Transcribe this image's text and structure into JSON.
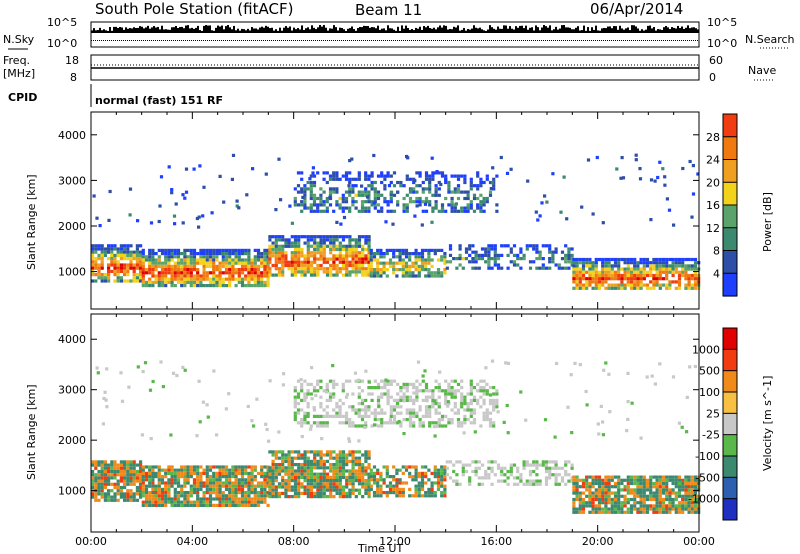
{
  "header": {
    "station": "South Pole Station (fitACF)",
    "beam": "Beam 11",
    "date": "06/Apr/2014"
  },
  "summary_panel": {
    "nsky_label": "N.Sky",
    "nsearch_label": "N.Search",
    "freq_label_1": "Freq.",
    "freq_label_2": "[MHz]",
    "nave_label": "Nave",
    "cpid_label": "CPID",
    "cpid_value": "normal (fast) 151 RF",
    "noise_ticks_left": [
      "10^5",
      "10^0"
    ],
    "noise_ticks_right": [
      "10^5",
      "10^0"
    ],
    "freq_ticks": [
      "18",
      "8"
    ],
    "nave_ticks": [
      "60",
      "0"
    ]
  },
  "colors": {
    "frame": "#000000",
    "power_scale": [
      "#1f3fff",
      "#2e4fa8",
      "#3b8a6f",
      "#5aa36a",
      "#f2d21b",
      "#f0a020",
      "#f07a10",
      "#f03c10",
      "#e00000"
    ],
    "velocity_scale": [
      "#e00000",
      "#f03c10",
      "#f08a1a",
      "#f7c043",
      "#c8c8c8",
      "#5ab84a",
      "#3b8a6f",
      "#2c5fb0",
      "#1f2fbf"
    ]
  },
  "chart_data": [
    {
      "type": "heatmap",
      "name": "power",
      "xlabel": "Time UT",
      "ylabel": "Slant Range [km]",
      "x_ticks": [
        "00:00",
        "04:00",
        "08:00",
        "12:00",
        "16:00",
        "20:00",
        "00:00"
      ],
      "y_ticks": [
        "1000",
        "2000",
        "3000",
        "4000"
      ],
      "ylim": [
        180,
        4500
      ],
      "xlim_hours": [
        0,
        24
      ],
      "colorbar_label": "Power [dB]",
      "colorbar_ticks": [
        "4",
        "8",
        "12",
        "16",
        "20",
        "24",
        "28"
      ],
      "bands": [
        {
          "t0": 0,
          "t1": 2,
          "lo": 800,
          "hi": 1600,
          "value": "strong"
        },
        {
          "t0": 2,
          "t1": 7,
          "lo": 700,
          "hi": 1500,
          "value": "strong"
        },
        {
          "t0": 7,
          "t1": 11,
          "lo": 900,
          "hi": 1800,
          "value": "strong"
        },
        {
          "t0": 11,
          "t1": 14,
          "lo": 900,
          "hi": 1500,
          "value": "medium"
        },
        {
          "t0": 14,
          "t1": 19,
          "lo": 1100,
          "hi": 1600,
          "value": "weak"
        },
        {
          "t0": 19,
          "t1": 24,
          "lo": 600,
          "hi": 1300,
          "value": "strong"
        },
        {
          "t0": 8,
          "t1": 16,
          "lo": 2300,
          "hi": 3200,
          "value": "weak"
        }
      ]
    },
    {
      "type": "heatmap",
      "name": "velocity",
      "xlabel": "Time UT",
      "ylabel": "Slant Range [km]",
      "x_ticks": [
        "00:00",
        "04:00",
        "08:00",
        "12:00",
        "16:00",
        "20:00",
        "00:00"
      ],
      "y_ticks": [
        "1000",
        "2000",
        "3000",
        "4000"
      ],
      "ylim": [
        180,
        4500
      ],
      "xlim_hours": [
        0,
        24
      ],
      "colorbar_label": "Velocity [m s^-1]",
      "colorbar_ticks": [
        "1000",
        "500",
        "100",
        "25",
        "-25",
        "-100",
        "-500",
        "-1000"
      ]
    }
  ]
}
